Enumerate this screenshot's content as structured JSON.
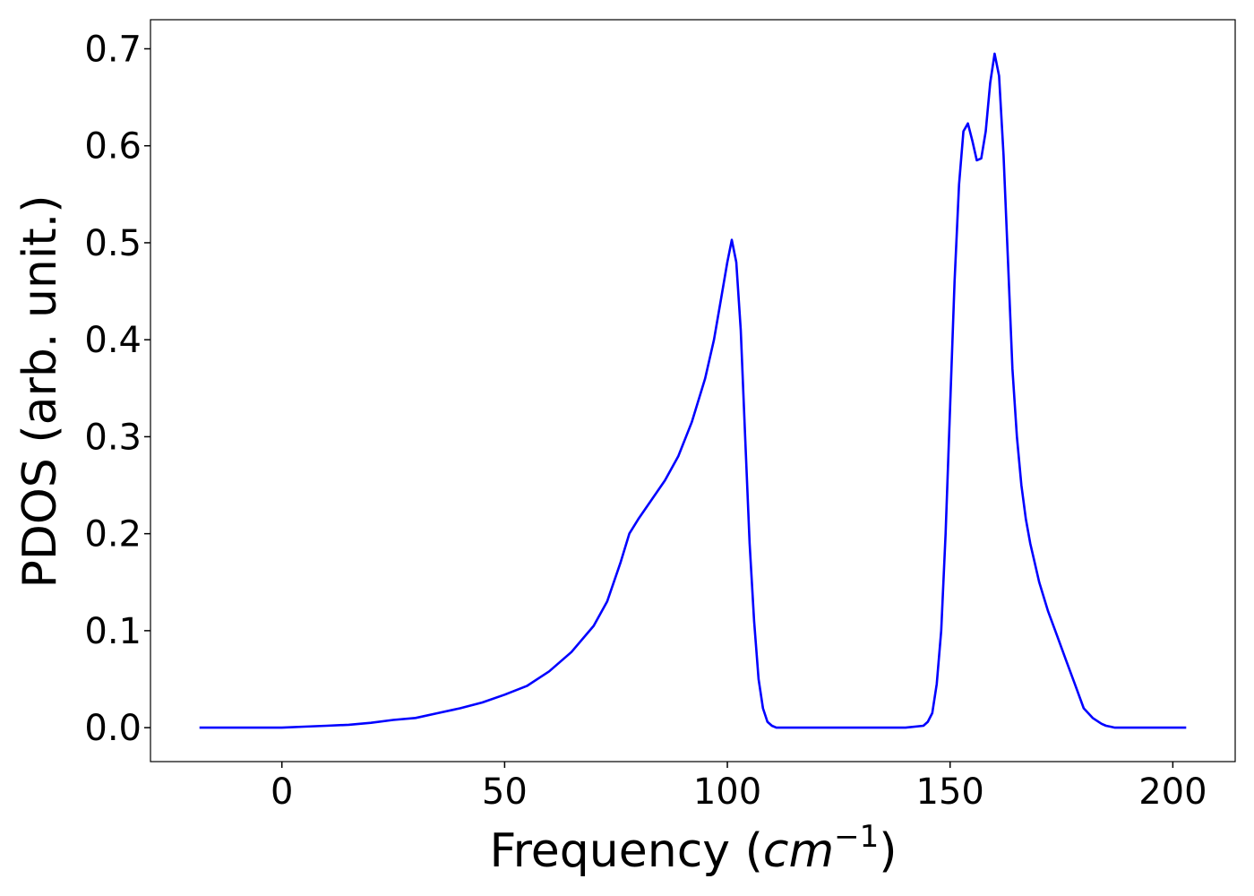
{
  "chart_data": {
    "type": "line",
    "title": "",
    "xlabel": "Frequency ($cm^{-1}$)",
    "xlabel_parts": {
      "prefix": "Frequency (",
      "math_base": "cm",
      "math_sup": "−1",
      "suffix": ")"
    },
    "ylabel": "PDOS (arb. unit.)",
    "xlim": [
      -29.5,
      214
    ],
    "ylim": [
      -0.035,
      0.73
    ],
    "grid": false,
    "legend": "none",
    "x_ticks": [
      0,
      50,
      100,
      150,
      200
    ],
    "x_tick_labels": [
      "0",
      "50",
      "100",
      "150",
      "200"
    ],
    "y_ticks": [
      0.0,
      0.1,
      0.2,
      0.3,
      0.4,
      0.5,
      0.6,
      0.7
    ],
    "y_tick_labels": [
      "0.0",
      "0.1",
      "0.2",
      "0.3",
      "0.4",
      "0.5",
      "0.6",
      "0.7"
    ],
    "series": [
      {
        "color": "#0000ff",
        "x": [
          -18.5,
          0,
          5,
          10,
          15,
          20,
          25,
          30,
          35,
          40,
          45,
          50,
          55,
          60,
          65,
          70,
          73,
          76,
          78,
          80,
          83,
          86,
          89,
          92,
          95,
          97,
          98.5,
          100,
          101,
          102,
          103,
          104,
          105,
          106,
          107,
          108,
          109,
          110,
          111,
          112,
          120,
          130,
          140,
          144,
          145,
          146,
          147,
          148,
          149,
          150,
          151,
          152,
          153,
          154,
          155,
          156,
          157,
          158,
          159,
          160,
          161,
          162,
          163,
          164,
          165,
          166,
          167,
          168,
          169,
          170,
          172,
          174,
          176,
          178,
          180,
          182,
          184,
          185,
          186,
          187,
          188,
          190,
          203
        ],
        "values": [
          0.0,
          0.0,
          0.001,
          0.002,
          0.003,
          0.005,
          0.008,
          0.01,
          0.015,
          0.02,
          0.026,
          0.034,
          0.043,
          0.058,
          0.078,
          0.105,
          0.13,
          0.17,
          0.2,
          0.215,
          0.235,
          0.255,
          0.28,
          0.315,
          0.36,
          0.4,
          0.44,
          0.48,
          0.503,
          0.48,
          0.41,
          0.3,
          0.19,
          0.11,
          0.05,
          0.02,
          0.006,
          0.002,
          0.0,
          0.0,
          0.0,
          0.0,
          0.0,
          0.002,
          0.006,
          0.015,
          0.045,
          0.1,
          0.2,
          0.33,
          0.46,
          0.56,
          0.615,
          0.623,
          0.605,
          0.585,
          0.587,
          0.615,
          0.665,
          0.695,
          0.672,
          0.59,
          0.48,
          0.37,
          0.3,
          0.25,
          0.215,
          0.19,
          0.17,
          0.15,
          0.12,
          0.095,
          0.07,
          0.045,
          0.02,
          0.01,
          0.004,
          0.002,
          0.001,
          0.0,
          0.0,
          0.0,
          0.0
        ]
      }
    ]
  }
}
